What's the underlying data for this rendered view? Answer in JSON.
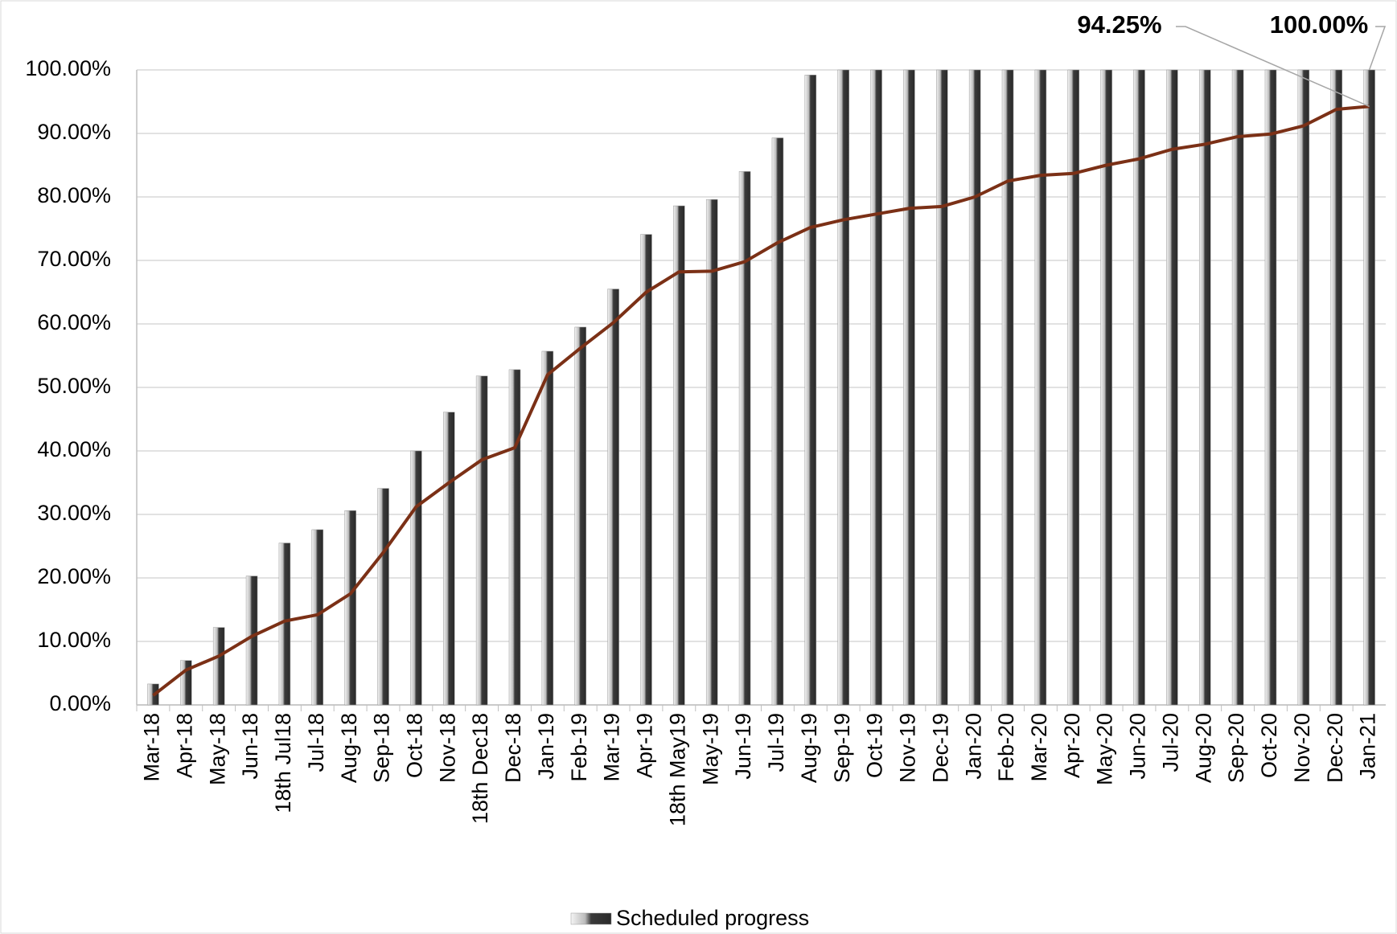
{
  "chart_data": {
    "type": "bar_line",
    "categories": [
      "Mar-18",
      "Apr-18",
      "May-18",
      "Jun-18",
      "18th Jul18",
      "Jul-18",
      "Aug-18",
      "Sep-18",
      "Oct-18",
      "Nov-18",
      "18th Dec18",
      "Dec-18",
      "Jan-19",
      "Feb-19",
      "Mar-19",
      "Apr-19",
      "18th May19",
      "May-19",
      "Jun-19",
      "Jul-19",
      "Aug-19",
      "Sep-19",
      "Oct-19",
      "Nov-19",
      "Dec-19",
      "Jan-20",
      "Feb-20",
      "Mar-20",
      "Apr-20",
      "May-20",
      "Jun-20",
      "Jul-20",
      "Aug-20",
      "Sep-20",
      "Oct-20",
      "Nov-20",
      "Dec-20",
      "Jan-21"
    ],
    "series": [
      {
        "name": "Scheduled progress",
        "type": "bar",
        "color": "#3a3a3a",
        "values": [
          3.3,
          7,
          12.2,
          20.3,
          25.5,
          27.6,
          30.6,
          34.1,
          40,
          46.1,
          51.8,
          52.8,
          55.7,
          59.5,
          65.5,
          74.1,
          78.6,
          79.6,
          84,
          89.3,
          99.2,
          100,
          100,
          100,
          100,
          100,
          100,
          100,
          100,
          100,
          100,
          100,
          100,
          100,
          100,
          100,
          100,
          100
        ],
        "value_labels": [
          null,
          null,
          null,
          null,
          null,
          null,
          null,
          null,
          null,
          null,
          null,
          null,
          null,
          null,
          null,
          null,
          null,
          null,
          null,
          null,
          null,
          null,
          null,
          null,
          null,
          null,
          null,
          null,
          null,
          null,
          null,
          null,
          null,
          null,
          null,
          null,
          null,
          "100.00%"
        ]
      },
      {
        "type": "line",
        "color": "#7b3016",
        "values": [
          1.5,
          5.5,
          7.7,
          10.8,
          13.2,
          14.2,
          17.5,
          24,
          31.2,
          35,
          38.6,
          40.5,
          52,
          56.2,
          60.2,
          65,
          68.2,
          68.3,
          69.8,
          72.8,
          75.2,
          76.4,
          77.3,
          78.2,
          78.5,
          80,
          82.5,
          83.4,
          83.7,
          85,
          86,
          87.5,
          88.3,
          89.5,
          89.9,
          91.2,
          93.8,
          94.25
        ],
        "value_labels": [
          null,
          null,
          null,
          null,
          null,
          null,
          null,
          null,
          null,
          null,
          null,
          null,
          null,
          null,
          null,
          null,
          null,
          null,
          null,
          null,
          null,
          null,
          null,
          null,
          null,
          null,
          null,
          null,
          null,
          null,
          null,
          null,
          null,
          null,
          null,
          null,
          null,
          "94.25%"
        ]
      }
    ],
    "ylim": [
      0,
      100
    ],
    "yticks": [
      {
        "value": 0,
        "label": "0.00%"
      },
      {
        "value": 10,
        "label": "10.00%"
      },
      {
        "value": 20,
        "label": "20.00%"
      },
      {
        "value": 30,
        "label": "30.00%"
      },
      {
        "value": 40,
        "label": "40.00%"
      },
      {
        "value": 50,
        "label": "50.00%"
      },
      {
        "value": 60,
        "label": "60.00%"
      },
      {
        "value": 70,
        "label": "70.00%"
      },
      {
        "value": 80,
        "label": "80.00%"
      },
      {
        "value": 90,
        "label": "90.00%"
      },
      {
        "value": 100,
        "label": "100.00%"
      }
    ],
    "grid": true,
    "legend": "bottom"
  }
}
